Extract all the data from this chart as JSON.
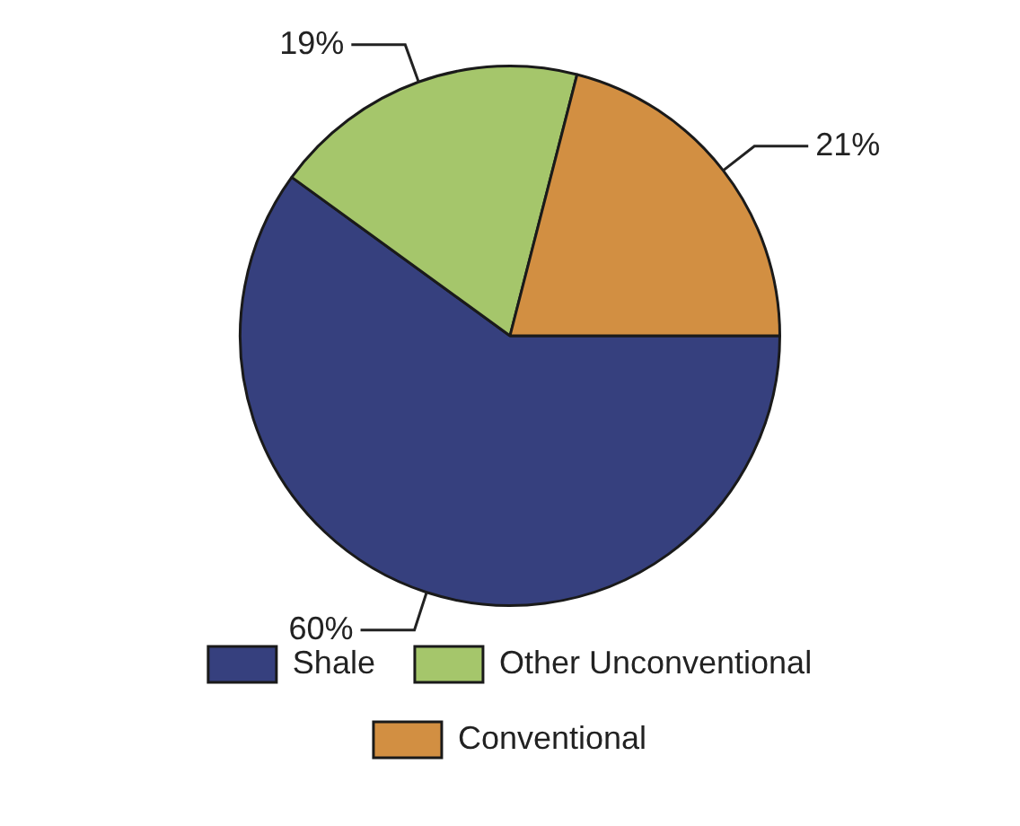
{
  "chart_data": {
    "type": "pie",
    "categories": [
      "Shale",
      "Other Unconventional",
      "Conventional"
    ],
    "values": [
      60,
      19,
      21
    ],
    "colors": [
      "#36407e",
      "#a5c66b",
      "#d28f42"
    ],
    "value_labels": [
      "60%",
      "19%",
      "21%"
    ],
    "legend": "bottom"
  }
}
